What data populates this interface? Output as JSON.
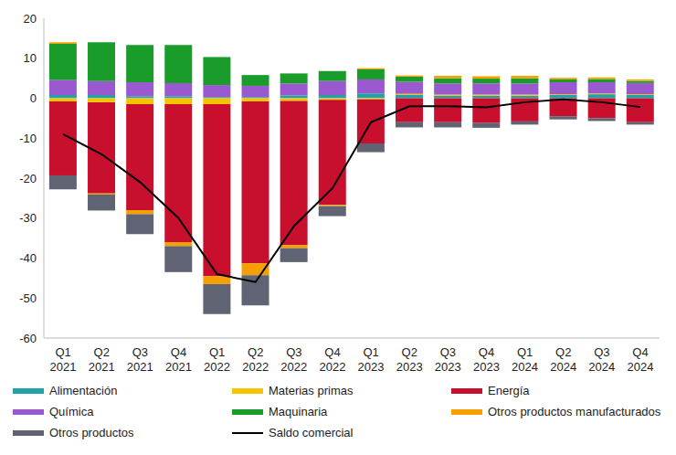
{
  "chart_data": {
    "type": "bar",
    "stacked": true,
    "categories": [
      "Q1 2021",
      "Q2 2021",
      "Q3 2021",
      "Q4 2021",
      "Q1 2022",
      "Q2 2022",
      "Q3 2022",
      "Q4 2022",
      "Q1 2023",
      "Q2 2023",
      "Q3 2023",
      "Q4 2023",
      "Q1 2024",
      "Q2 2024",
      "Q3 2024",
      "Q4 2024"
    ],
    "ylim": [
      -60,
      20
    ],
    "yticks": [
      -60,
      -50,
      -40,
      -30,
      -20,
      -10,
      0,
      10,
      20
    ],
    "grid": false,
    "series": [
      {
        "name": "Alimentación",
        "color": "#1fa3a8",
        "values": [
          0.8,
          0.8,
          0.5,
          0.5,
          0.3,
          0.3,
          0.7,
          0.8,
          1.2,
          0.8,
          0.6,
          0.6,
          0.6,
          0.8,
          1.0,
          0.8
        ]
      },
      {
        "name": "Materias primas",
        "color": "#f5c400",
        "values": [
          -0.8,
          -1.0,
          -1.5,
          -1.5,
          -1.5,
          -0.8,
          -0.7,
          -0.4,
          -0.3,
          0.3,
          0.3,
          0.3,
          0.3,
          0.2,
          0.2,
          0.2
        ]
      },
      {
        "name": "Energía",
        "color": "#c8102e",
        "values": [
          -18.5,
          -22.8,
          -26.5,
          -34.5,
          -43.0,
          -40.5,
          -36.0,
          -26.3,
          -11.0,
          -6.0,
          -6.0,
          -6.2,
          -5.8,
          -4.5,
          -5.0,
          -6.0
        ]
      },
      {
        "name": "Química",
        "color": "#9b59d0",
        "values": [
          3.8,
          3.5,
          3.5,
          3.3,
          3.0,
          2.8,
          3.0,
          3.5,
          3.5,
          3.0,
          2.8,
          2.8,
          2.8,
          3.0,
          2.8,
          2.8
        ]
      },
      {
        "name": "Maquinaria",
        "color": "#1a9c2a",
        "values": [
          9.0,
          9.7,
          9.3,
          9.5,
          7.0,
          2.7,
          2.5,
          2.5,
          2.5,
          1.3,
          1.3,
          1.2,
          1.3,
          0.7,
          0.8,
          0.5
        ]
      },
      {
        "name": "Otros productos manufacturados",
        "color": "#f5a000",
        "values": [
          0.4,
          -0.3,
          -1.0,
          -1.0,
          -2.0,
          -3.0,
          -0.8,
          -0.3,
          0.3,
          0.3,
          0.6,
          0.6,
          0.6,
          0.4,
          0.4,
          0.4
        ]
      },
      {
        "name": "Otros productos",
        "color": "#5f6374",
        "values": [
          -3.5,
          -4.0,
          -5.0,
          -6.5,
          -7.5,
          -7.5,
          -3.5,
          -2.5,
          -2.2,
          -1.3,
          -1.3,
          -1.2,
          -0.8,
          -0.8,
          -0.7,
          -0.6
        ]
      },
      {
        "name": "Saldo comercial",
        "color": "#000000",
        "type": "line",
        "values": [
          -9.0,
          -14.0,
          -21.0,
          -30.0,
          -44.0,
          -46.0,
          -32.0,
          -22.5,
          -6.0,
          -2.0,
          -2.0,
          -2.3,
          -1.0,
          -0.3,
          -1.0,
          -2.2
        ]
      }
    ]
  }
}
